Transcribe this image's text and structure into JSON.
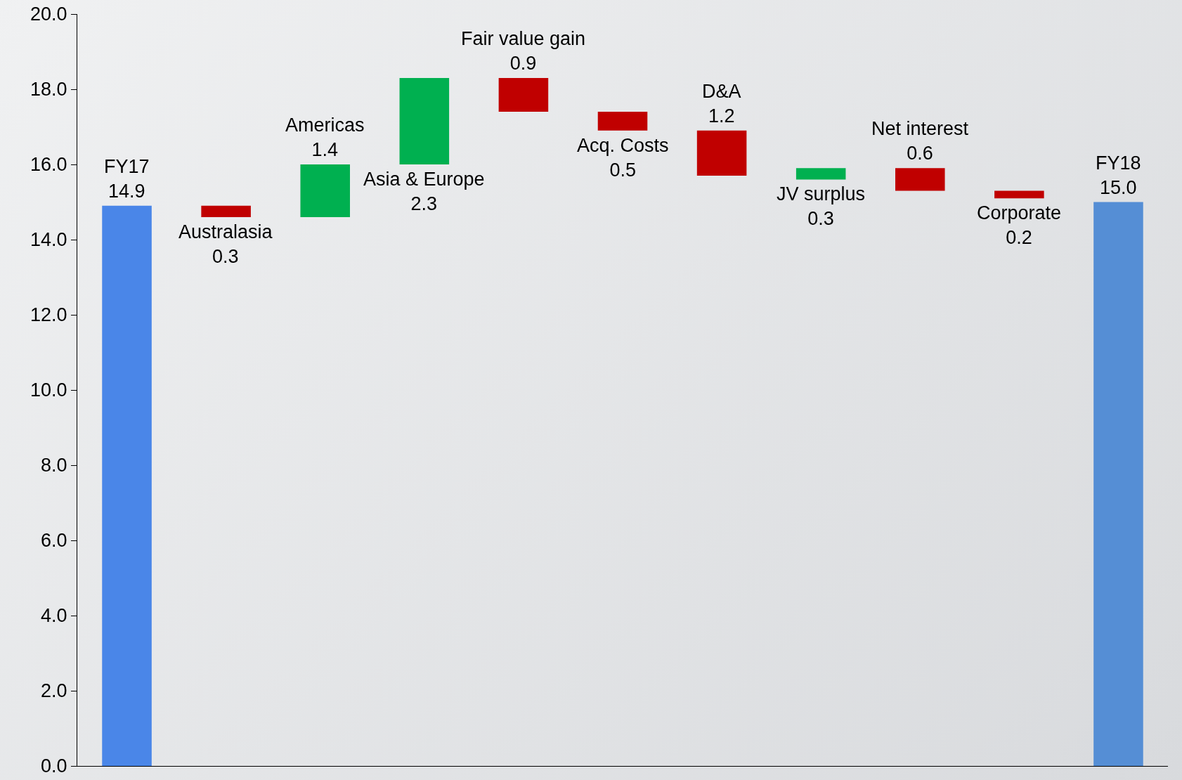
{
  "chart_data": {
    "type": "bar",
    "categories": [
      "FY17",
      "Australasia",
      "Americas",
      "Asia & Europe",
      "Fair value gain",
      "Acq. Costs",
      "D&A",
      "JV surplus",
      "Net interest",
      "Corporate",
      "FY18"
    ],
    "values": [
      14.9,
      -0.3,
      1.4,
      2.3,
      -0.9,
      -0.5,
      -1.2,
      0.3,
      -0.6,
      -0.2,
      15.0
    ],
    "base": [
      0,
      14.9,
      14.6,
      16.0,
      18.3,
      17.4,
      16.9,
      15.6,
      15.9,
      15.3,
      0
    ],
    "colors": [
      "#4a86e8",
      "#c00000",
      "#00b050",
      "#00b050",
      "#c00000",
      "#c00000",
      "#c00000",
      "#00b050",
      "#c00000",
      "#c00000",
      "#558ed5"
    ],
    "value_labels": [
      "14.9",
      "0.3",
      "1.4",
      "2.3",
      "0.9",
      "0.5",
      "1.2",
      "0.3",
      "0.6",
      "0.2",
      "15.0"
    ],
    "ylim": [
      0,
      20
    ],
    "yticks": [
      {
        "value": 0,
        "label": "0.0"
      },
      {
        "value": 2,
        "label": "2.0"
      },
      {
        "value": 4,
        "label": "4.0"
      },
      {
        "value": 6,
        "label": "6.0"
      },
      {
        "value": 8,
        "label": "8.0"
      },
      {
        "value": 10,
        "label": "10.0"
      },
      {
        "value": 12,
        "label": "12.0"
      },
      {
        "value": 14,
        "label": "14.0"
      },
      {
        "value": 16,
        "label": "16.0"
      },
      {
        "value": 18,
        "label": "18.0"
      },
      {
        "value": 20,
        "label": "20.0"
      }
    ],
    "tick_labels": "y",
    "grid": false
  }
}
